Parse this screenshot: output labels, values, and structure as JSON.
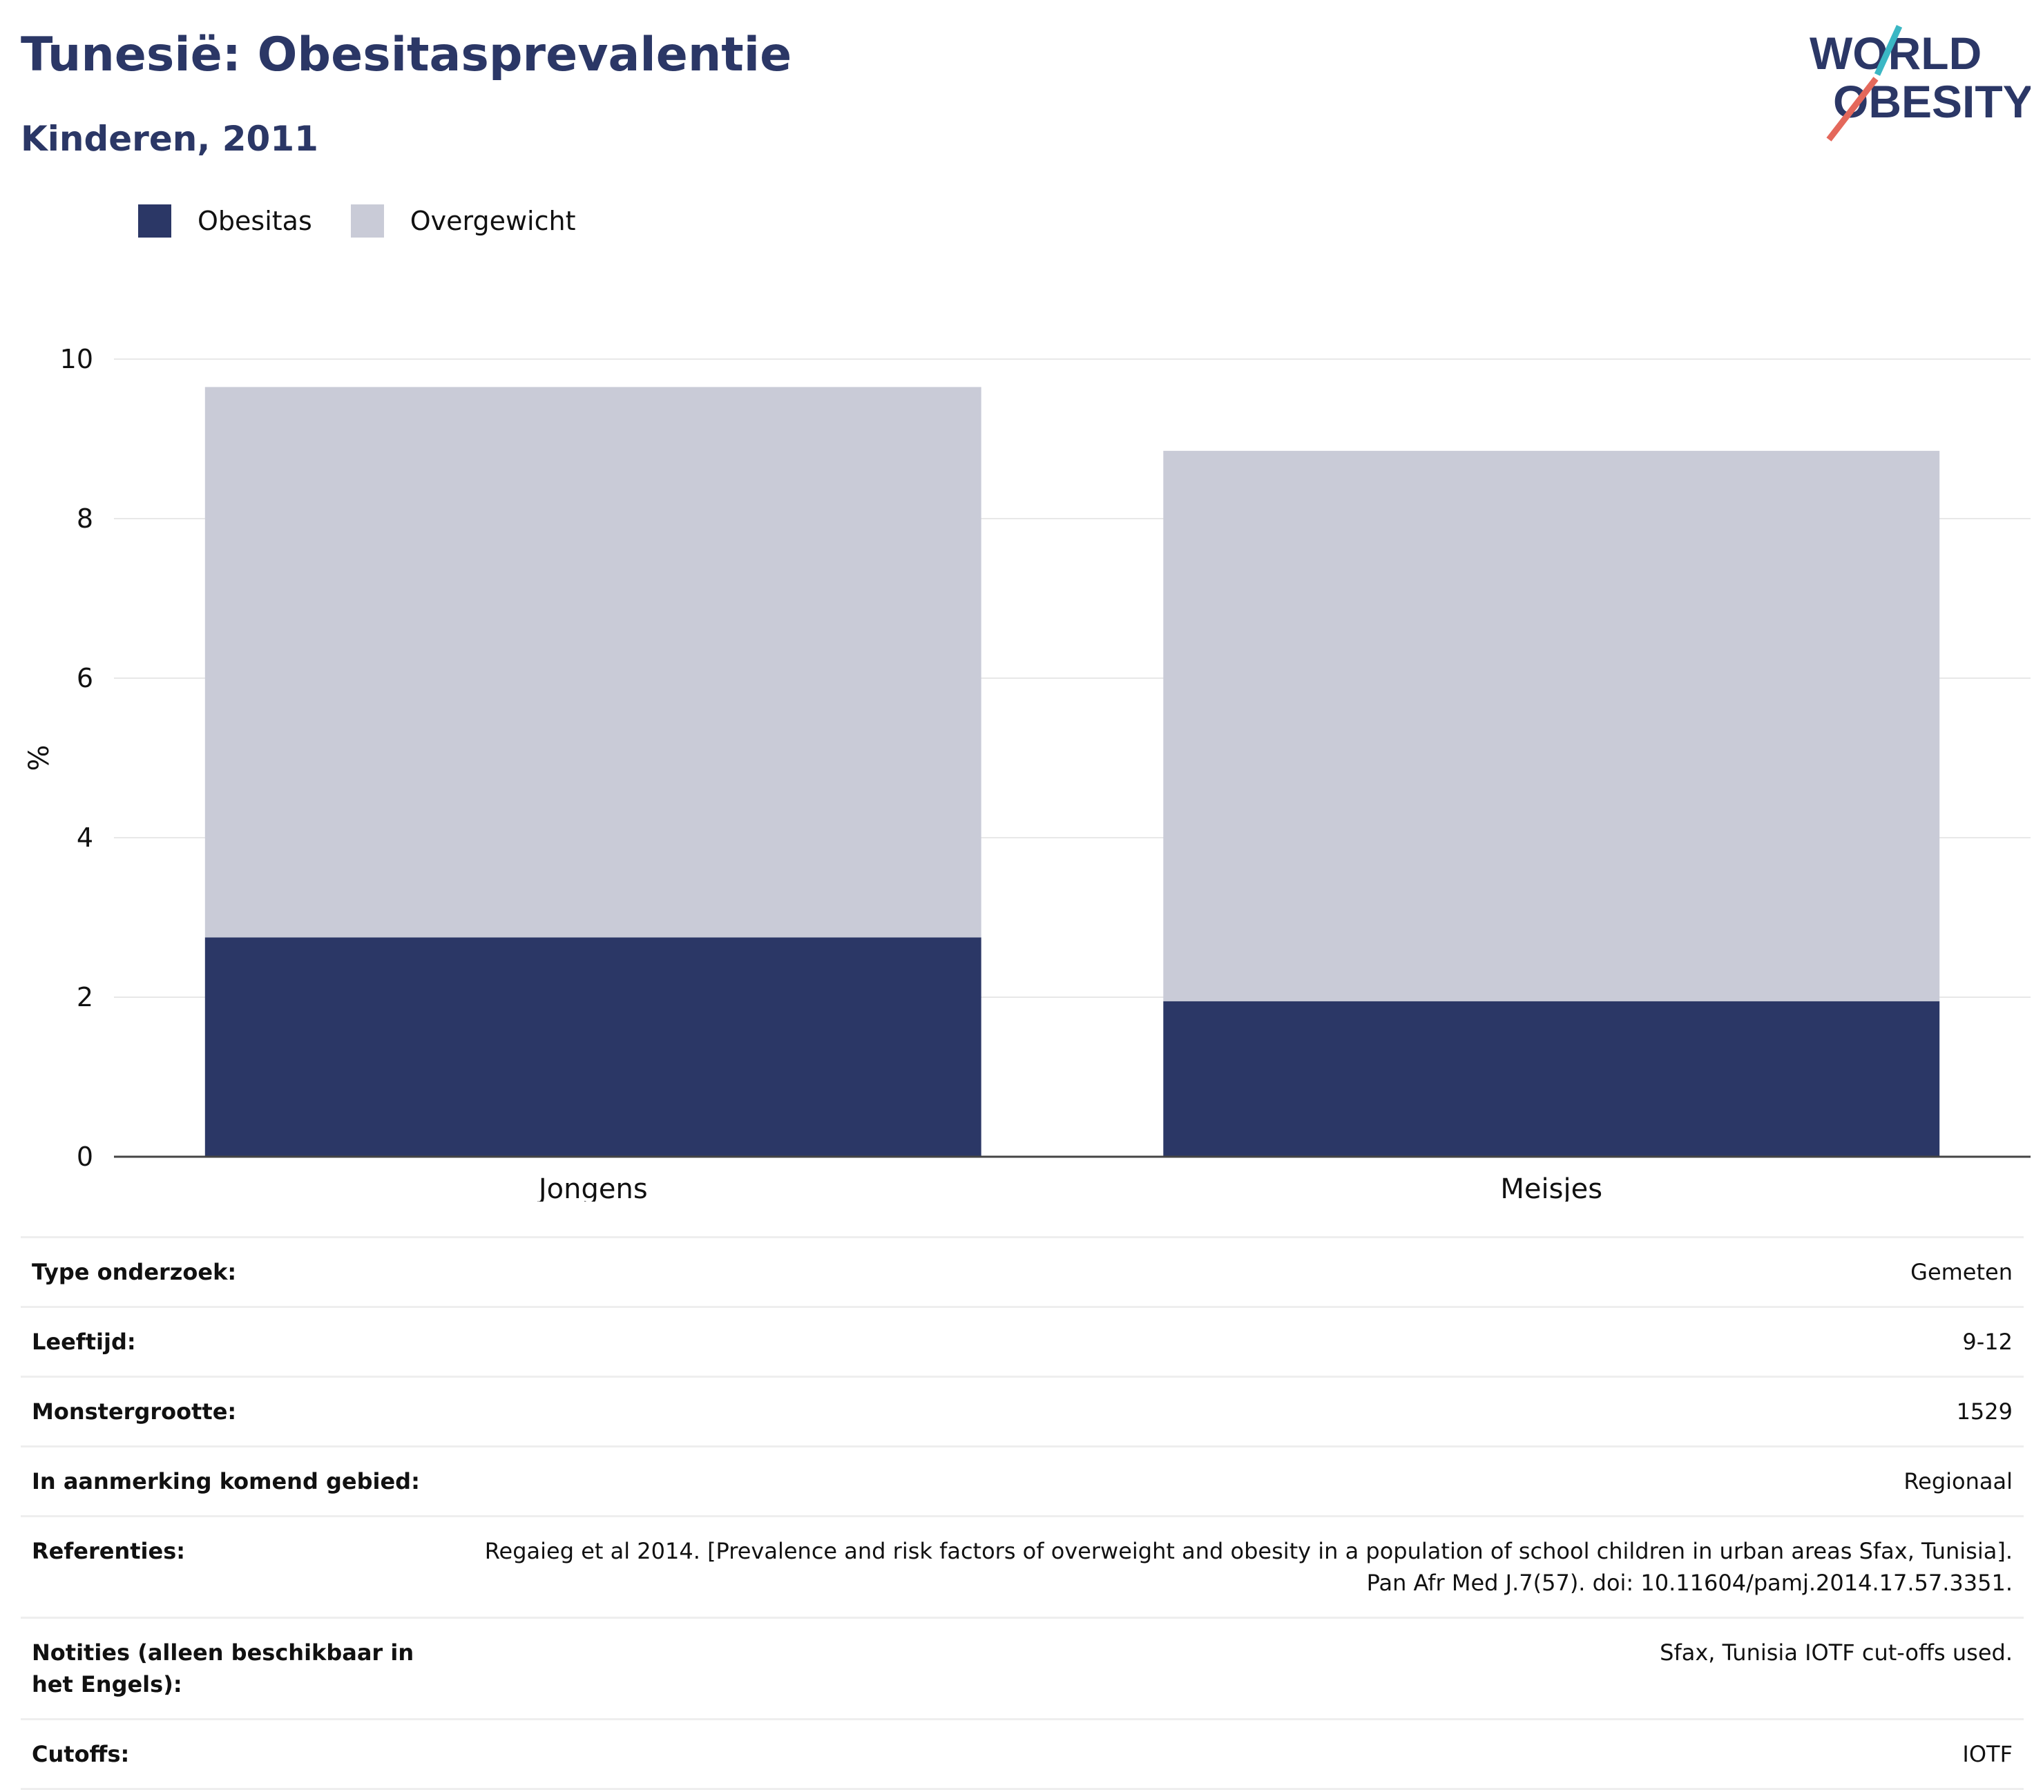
{
  "header": {
    "title": "Tunesië: Obesitasprevalentie",
    "subtitle": "Kinderen, 2011",
    "logo_line1": "WORLD",
    "logo_line2": "OBESITY"
  },
  "colors": {
    "obesitas": "#2b3766",
    "overgewicht": "#c9cbd7",
    "title": "#2b3766",
    "logo_teal": "#3bb7c4",
    "logo_coral": "#e4685b"
  },
  "chart_data": {
    "type": "bar",
    "stacked": true,
    "categories": [
      "Jongens",
      "Meisjes"
    ],
    "series": [
      {
        "name": "Obesitas",
        "values": [
          2.75,
          1.95
        ]
      },
      {
        "name": "Overgewicht",
        "values": [
          6.9,
          6.9
        ]
      }
    ],
    "ylabel": "%",
    "ylim": [
      0,
      10
    ],
    "yticks": [
      0,
      2,
      4,
      6,
      8,
      10
    ],
    "grid": true,
    "legend_position": "top-left"
  },
  "info_rows": [
    {
      "key": "Type onderzoek:",
      "value": "Gemeten"
    },
    {
      "key": "Leeftijd:",
      "value": "9-12"
    },
    {
      "key": "Monstergrootte:",
      "value": "1529"
    },
    {
      "key": "In aanmerking komend gebied:",
      "value": "Regionaal"
    },
    {
      "key": "Referenties:",
      "value": "Regaieg et al 2014. [Prevalence and risk factors of overweight and obesity in a population of school children in urban areas Sfax, Tunisia]. Pan Afr Med J.7(57). doi: 10.11604/pamj.2014.17.57.3351."
    },
    {
      "key": "Notities (alleen beschikbaar in het Engels):",
      "value": "Sfax, Tunisia IOTF cut-offs used."
    },
    {
      "key": "Cutoffs:",
      "value": "IOTF"
    }
  ]
}
